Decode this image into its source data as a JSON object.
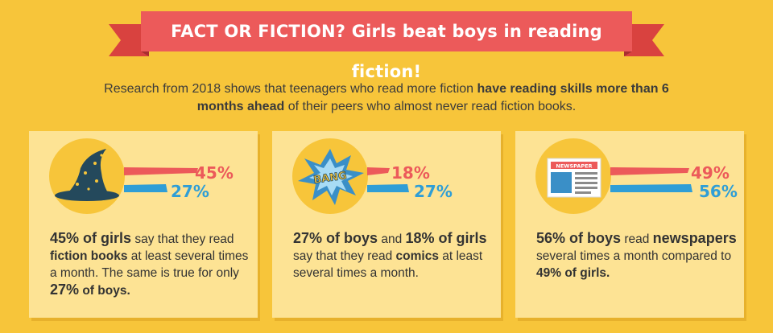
{
  "banner": {
    "title": "FACT OR FICTION? Girls beat boys in reading fiction!"
  },
  "intro": {
    "part1": "Research from 2018 shows that teenagers who read more fiction ",
    "bold": "have reading skills more than 6 months ahead",
    "part2": " of their peers who almost never read fiction books."
  },
  "colors": {
    "girls": "#ec5a5a",
    "boys": "#2f9ed6",
    "background": "#f7c53a",
    "card": "#fde394"
  },
  "cards": [
    {
      "icon": "wizard-hat-icon",
      "girls_pct": "45%",
      "boys_pct": "27%",
      "girls_value": 45,
      "boys_value": 27,
      "t1": "45% of girls",
      "t2": " say that they read ",
      "t3": "fiction books",
      "t4": " at least several times a month. The same is true for only ",
      "t5": "27%",
      "t6": " of boys."
    },
    {
      "icon": "bang-comic-icon",
      "icon_text": "BANG",
      "girls_pct": "18%",
      "boys_pct": "27%",
      "girls_value": 18,
      "boys_value": 27,
      "t1": "27% of boys",
      "t2": " and ",
      "t3": "18% of girls",
      "t4": " say that they read ",
      "t5": "comics",
      "t6": " at least several times a month."
    },
    {
      "icon": "newspaper-icon",
      "icon_text": "NEWSPAPER",
      "girls_pct": "49%",
      "boys_pct": "56%",
      "girls_value": 49,
      "boys_value": 56,
      "t1": "56% of boys",
      "t2": " read ",
      "t3": "newspapers",
      "t4": " several times a month compared to ",
      "t5": "49% of girls",
      "t6": "."
    }
  ]
}
